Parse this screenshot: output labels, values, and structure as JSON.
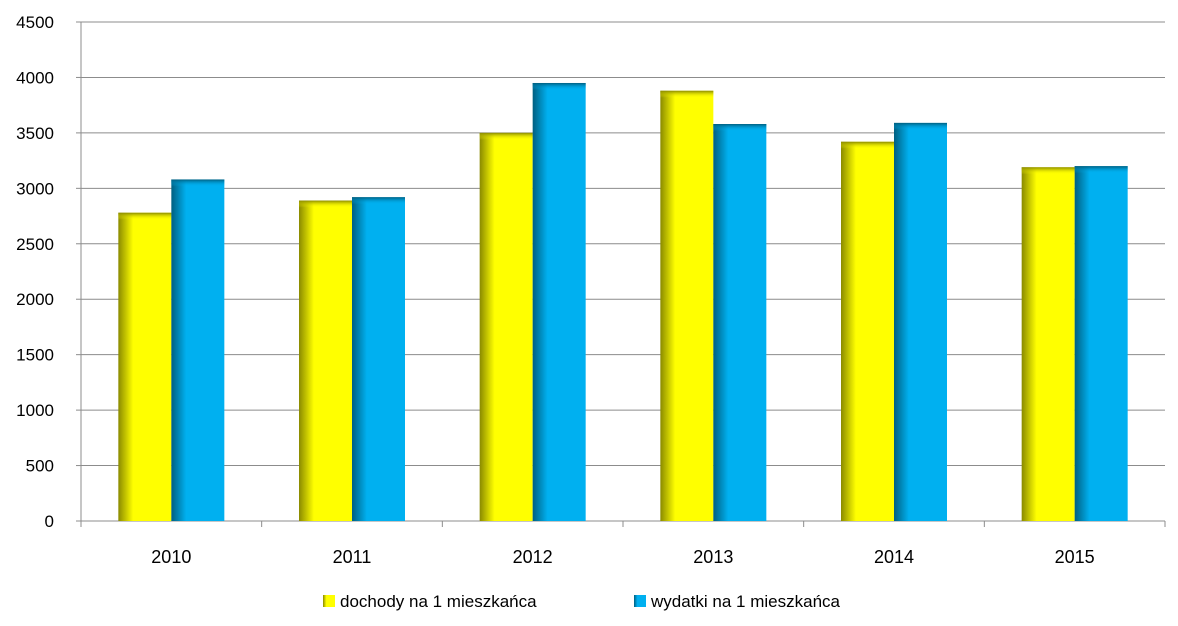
{
  "chart_data": {
    "type": "bar",
    "categories": [
      "2010",
      "2011",
      "2012",
      "2013",
      "2014",
      "2015"
    ],
    "series": [
      {
        "name": "dochody na 1 mieszkańca",
        "values": [
          2780,
          2890,
          3500,
          3880,
          3420,
          3190
        ],
        "color": "#FFFF00",
        "shade_color": "#8A8A00"
      },
      {
        "name": "wydatki na 1 mieszkańca",
        "values": [
          3080,
          2920,
          3950,
          3580,
          3590,
          3200
        ],
        "color": "#00B0F0",
        "shade_color": "#005F80"
      }
    ],
    "y_ticks": [
      "0",
      "500",
      "1000",
      "1500",
      "2000",
      "2500",
      "3000",
      "3500",
      "4000",
      "4500"
    ],
    "ylim": [
      0,
      4500
    ],
    "grid": true,
    "legend_position": "bottom"
  }
}
